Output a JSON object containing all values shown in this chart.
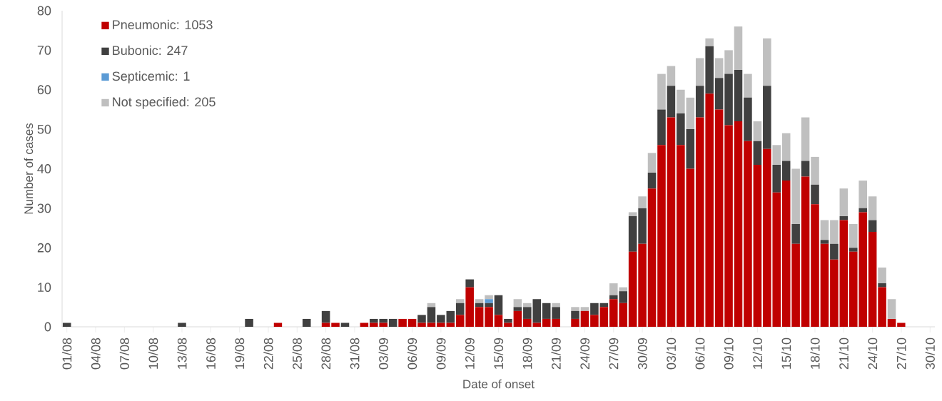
{
  "chart_data": {
    "type": "bar",
    "stacked": true,
    "xlabel": "Date of onset",
    "ylabel": "Number of cases",
    "categories": [
      "01/08",
      null,
      null,
      "04/08",
      null,
      null,
      "07/08",
      null,
      null,
      "10/08",
      null,
      null,
      "13/08",
      null,
      null,
      "16/08",
      null,
      null,
      "19/08",
      null,
      null,
      "22/08",
      null,
      null,
      "25/08",
      null,
      null,
      "28/08",
      null,
      null,
      "31/08",
      null,
      null,
      "03/09",
      null,
      null,
      "06/09",
      null,
      null,
      "09/09",
      null,
      null,
      "12/09",
      null,
      null,
      "15/09",
      null,
      null,
      "18/09",
      null,
      null,
      "21/09",
      null,
      null,
      "24/09",
      null,
      null,
      "27/09",
      null,
      null,
      "30/09",
      null,
      null,
      "03/10",
      null,
      null,
      "06/10",
      null,
      null,
      "09/10",
      null,
      null,
      "12/10",
      null,
      null,
      "15/10",
      null,
      null,
      "18/10",
      null,
      null,
      "21/10",
      null,
      null,
      "24/10",
      null,
      null,
      "27/10",
      null,
      null,
      "30/10"
    ],
    "series": [
      {
        "name": "Pneumonic: 1053",
        "color": "#c00000",
        "values": [
          0,
          0,
          0,
          0,
          0,
          0,
          0,
          0,
          0,
          0,
          0,
          0,
          0,
          0,
          0,
          0,
          0,
          0,
          0,
          0,
          0,
          0,
          1,
          0,
          0,
          0,
          0,
          1,
          1,
          0,
          0,
          1,
          1,
          1,
          0,
          2,
          2,
          1,
          1,
          1,
          1,
          3,
          10,
          5,
          5,
          3,
          1,
          4,
          2,
          1,
          2,
          2,
          0,
          2,
          4,
          3,
          5,
          7,
          6,
          19,
          21,
          35,
          46,
          53,
          46,
          40,
          53,
          59,
          55,
          51,
          52,
          47,
          41,
          45,
          34,
          37,
          21,
          38,
          31,
          21,
          17,
          27,
          19,
          29,
          24,
          10,
          2,
          1,
          0,
          0,
          0
        ]
      },
      {
        "name": "Bubonic: 247",
        "color": "#404040",
        "values": [
          1,
          0,
          0,
          0,
          0,
          0,
          0,
          0,
          0,
          0,
          0,
          0,
          1,
          0,
          0,
          0,
          0,
          0,
          0,
          2,
          0,
          0,
          0,
          0,
          0,
          2,
          0,
          3,
          0,
          1,
          0,
          0,
          1,
          1,
          2,
          0,
          0,
          2,
          4,
          2,
          3,
          3,
          2,
          1,
          1,
          5,
          1,
          1,
          3,
          6,
          4,
          3,
          0,
          2,
          0,
          3,
          1,
          1,
          3,
          9,
          9,
          4,
          9,
          8,
          8,
          10,
          8,
          12,
          8,
          13,
          13,
          11,
          6,
          16,
          7,
          5,
          5,
          4,
          5,
          1,
          4,
          1,
          1,
          1,
          3,
          1,
          0,
          0,
          0,
          0,
          0
        ]
      },
      {
        "name": "Septicemic: 1",
        "color": "#5b9bd5",
        "values": [
          0,
          0,
          0,
          0,
          0,
          0,
          0,
          0,
          0,
          0,
          0,
          0,
          0,
          0,
          0,
          0,
          0,
          0,
          0,
          0,
          0,
          0,
          0,
          0,
          0,
          0,
          0,
          0,
          0,
          0,
          0,
          0,
          0,
          0,
          0,
          0,
          0,
          0,
          0,
          0,
          0,
          0,
          0,
          0,
          1,
          0,
          0,
          0,
          0,
          0,
          0,
          0,
          0,
          0,
          0,
          0,
          0,
          0,
          0,
          0,
          0,
          0,
          0,
          0,
          0,
          0,
          0,
          0,
          0,
          0,
          0,
          0,
          0,
          0,
          0,
          0,
          0,
          0,
          0,
          0,
          0,
          0,
          0,
          0,
          0,
          0,
          0,
          0,
          0,
          0,
          0
        ]
      },
      {
        "name": "Not specified: 205",
        "color": "#bfbfbf",
        "values": [
          0,
          0,
          0,
          0,
          0,
          0,
          0,
          0,
          0,
          0,
          0,
          0,
          0,
          0,
          0,
          0,
          0,
          0,
          0,
          0,
          0,
          0,
          0,
          0,
          0,
          0,
          0,
          0,
          0,
          0,
          0,
          0,
          0,
          0,
          0,
          0,
          0,
          0,
          1,
          0,
          0,
          1,
          0,
          1,
          1,
          0,
          0,
          2,
          1,
          0,
          0,
          1,
          0,
          1,
          1,
          0,
          0,
          3,
          1,
          1,
          3,
          5,
          9,
          5,
          6,
          8,
          7,
          2,
          5,
          6,
          11,
          6,
          5,
          12,
          5,
          7,
          14,
          11,
          7,
          5,
          6,
          7,
          6,
          7,
          6,
          4,
          5,
          0,
          0,
          0,
          0
        ]
      }
    ],
    "ylim": [
      0,
      80
    ],
    "yticks": [
      0,
      10,
      20,
      30,
      40,
      50,
      60,
      70,
      80
    ],
    "legend": "top left"
  }
}
